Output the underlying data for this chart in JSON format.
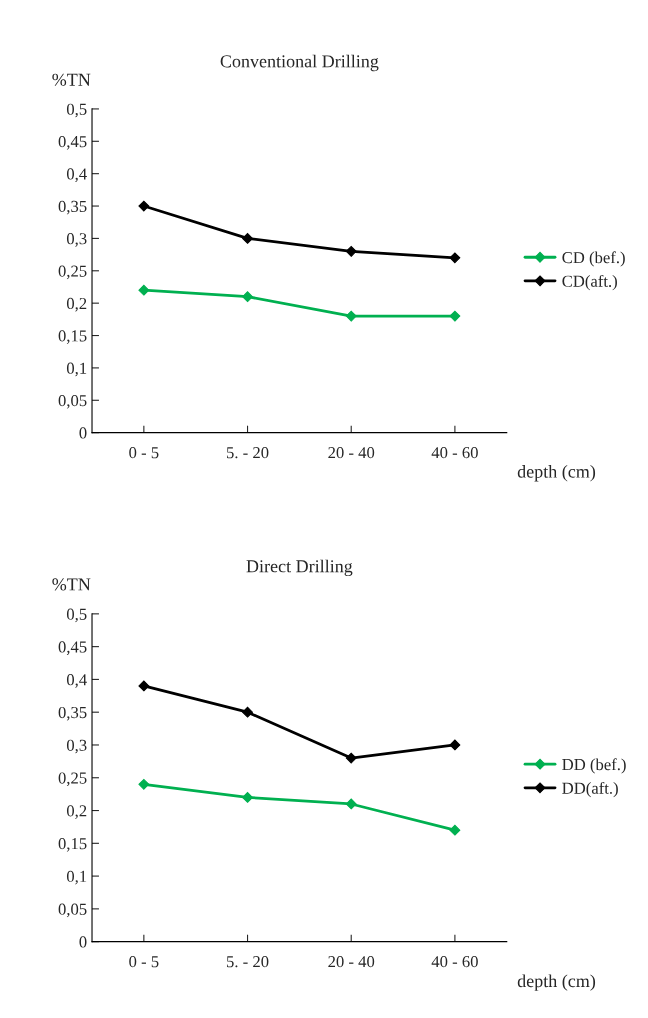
{
  "chart_data": [
    {
      "type": "line",
      "title": "Conventional Drilling",
      "ylabel": "%TN",
      "xlabel": "depth (cm)",
      "categories": [
        "0 - 5",
        "5. - 20",
        "20 - 40",
        "40 - 60"
      ],
      "series": [
        {
          "name": "CD (bef.)",
          "color": "#00b050",
          "values": [
            0.22,
            0.21,
            0.18,
            0.18
          ]
        },
        {
          "name": "CD(aft.)",
          "color": "#000000",
          "values": [
            0.35,
            0.3,
            0.28,
            0.27
          ]
        }
      ],
      "ylim": [
        0,
        0.5
      ],
      "yticks": [
        0,
        {
          "value": 0.05,
          "label": "0,05"
        },
        {
          "value": 0.1,
          "label": "0,1"
        },
        {
          "value": 0.15,
          "label": "0,15"
        },
        {
          "value": 0.2,
          "label": "0,2"
        },
        {
          "value": 0.25,
          "label": "0,25"
        },
        {
          "value": 0.3,
          "label": "0,3"
        },
        {
          "value": 0.35,
          "label": "0,35"
        },
        {
          "value": 0.4,
          "label": "0,4"
        },
        {
          "value": 0.45,
          "label": "0,45"
        },
        {
          "value": 0.5,
          "label": "0,5"
        }
      ],
      "marker": "diamond",
      "legend": "right",
      "grid": false
    },
    {
      "type": "line",
      "title": "Direct Drilling",
      "ylabel": "%TN",
      "xlabel": "depth (cm)",
      "categories": [
        "0 - 5",
        "5. - 20",
        "20 - 40",
        "40 - 60"
      ],
      "series": [
        {
          "name": "DD (bef.)",
          "color": "#00b050",
          "values": [
            0.24,
            0.22,
            0.21,
            0.17
          ]
        },
        {
          "name": "DD(aft.)",
          "color": "#000000",
          "values": [
            0.39,
            0.35,
            0.28,
            0.3
          ]
        }
      ],
      "ylim": [
        0,
        0.5
      ],
      "yticks": [
        0,
        {
          "value": 0.05,
          "label": "0,05"
        },
        {
          "value": 0.1,
          "label": "0,1"
        },
        {
          "value": 0.15,
          "label": "0,15"
        },
        {
          "value": 0.2,
          "label": "0,2"
        },
        {
          "value": 0.25,
          "label": "0,25"
        },
        {
          "value": 0.3,
          "label": "0,3"
        },
        {
          "value": 0.35,
          "label": "0,35"
        },
        {
          "value": 0.4,
          "label": "0,4"
        },
        {
          "value": 0.45,
          "label": "0,45"
        },
        {
          "value": 0.5,
          "label": "0,5"
        }
      ],
      "marker": "diamond",
      "legend": "right",
      "grid": false
    }
  ]
}
